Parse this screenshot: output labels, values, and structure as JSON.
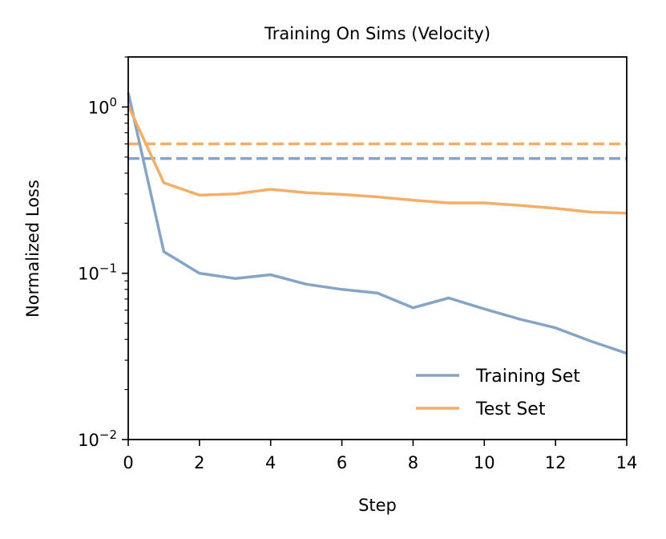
{
  "chart_data": {
    "type": "line",
    "title": "Training On Sims (Velocity)",
    "xlabel": "Step",
    "ylabel": "Normalized Loss",
    "xlim": [
      0,
      14
    ],
    "ylim": [
      0.01,
      2.0
    ],
    "yscale": "log",
    "grid": false,
    "legend_position": "lower-right",
    "x_ticks": [
      0,
      2,
      4,
      6,
      8,
      10,
      12,
      14
    ],
    "x_tick_labels": [
      "0",
      "2",
      "4",
      "6",
      "8",
      "10",
      "12",
      "14"
    ],
    "y_major_ticks": [
      0.01,
      0.1,
      1
    ],
    "y_tick_labels": [
      {
        "base": "10",
        "exp": "−2"
      },
      {
        "base": "10",
        "exp": "−1"
      },
      {
        "base": "10",
        "exp": "0"
      }
    ],
    "x": [
      0,
      1,
      2,
      3,
      4,
      5,
      6,
      7,
      8,
      9,
      10,
      11,
      12,
      13,
      14
    ],
    "series": [
      {
        "name": "Training Set",
        "color": "#86a4c6",
        "values": [
          1.22,
          0.135,
          0.1,
          0.093,
          0.098,
          0.086,
          0.08,
          0.076,
          0.062,
          0.071,
          0.061,
          0.053,
          0.047,
          0.039,
          0.033
        ]
      },
      {
        "name": "Test Set",
        "color": "#f4ae67",
        "values": [
          1.02,
          0.35,
          0.295,
          0.3,
          0.32,
          0.305,
          0.298,
          0.288,
          0.275,
          0.265,
          0.265,
          0.256,
          0.246,
          0.233,
          0.23
        ]
      }
    ],
    "reference_lines": [
      {
        "style": "dashed",
        "color": "#86a4c6",
        "value": 0.49
      },
      {
        "style": "dashed",
        "color": "#f4ae67",
        "value": 0.6
      }
    ]
  }
}
